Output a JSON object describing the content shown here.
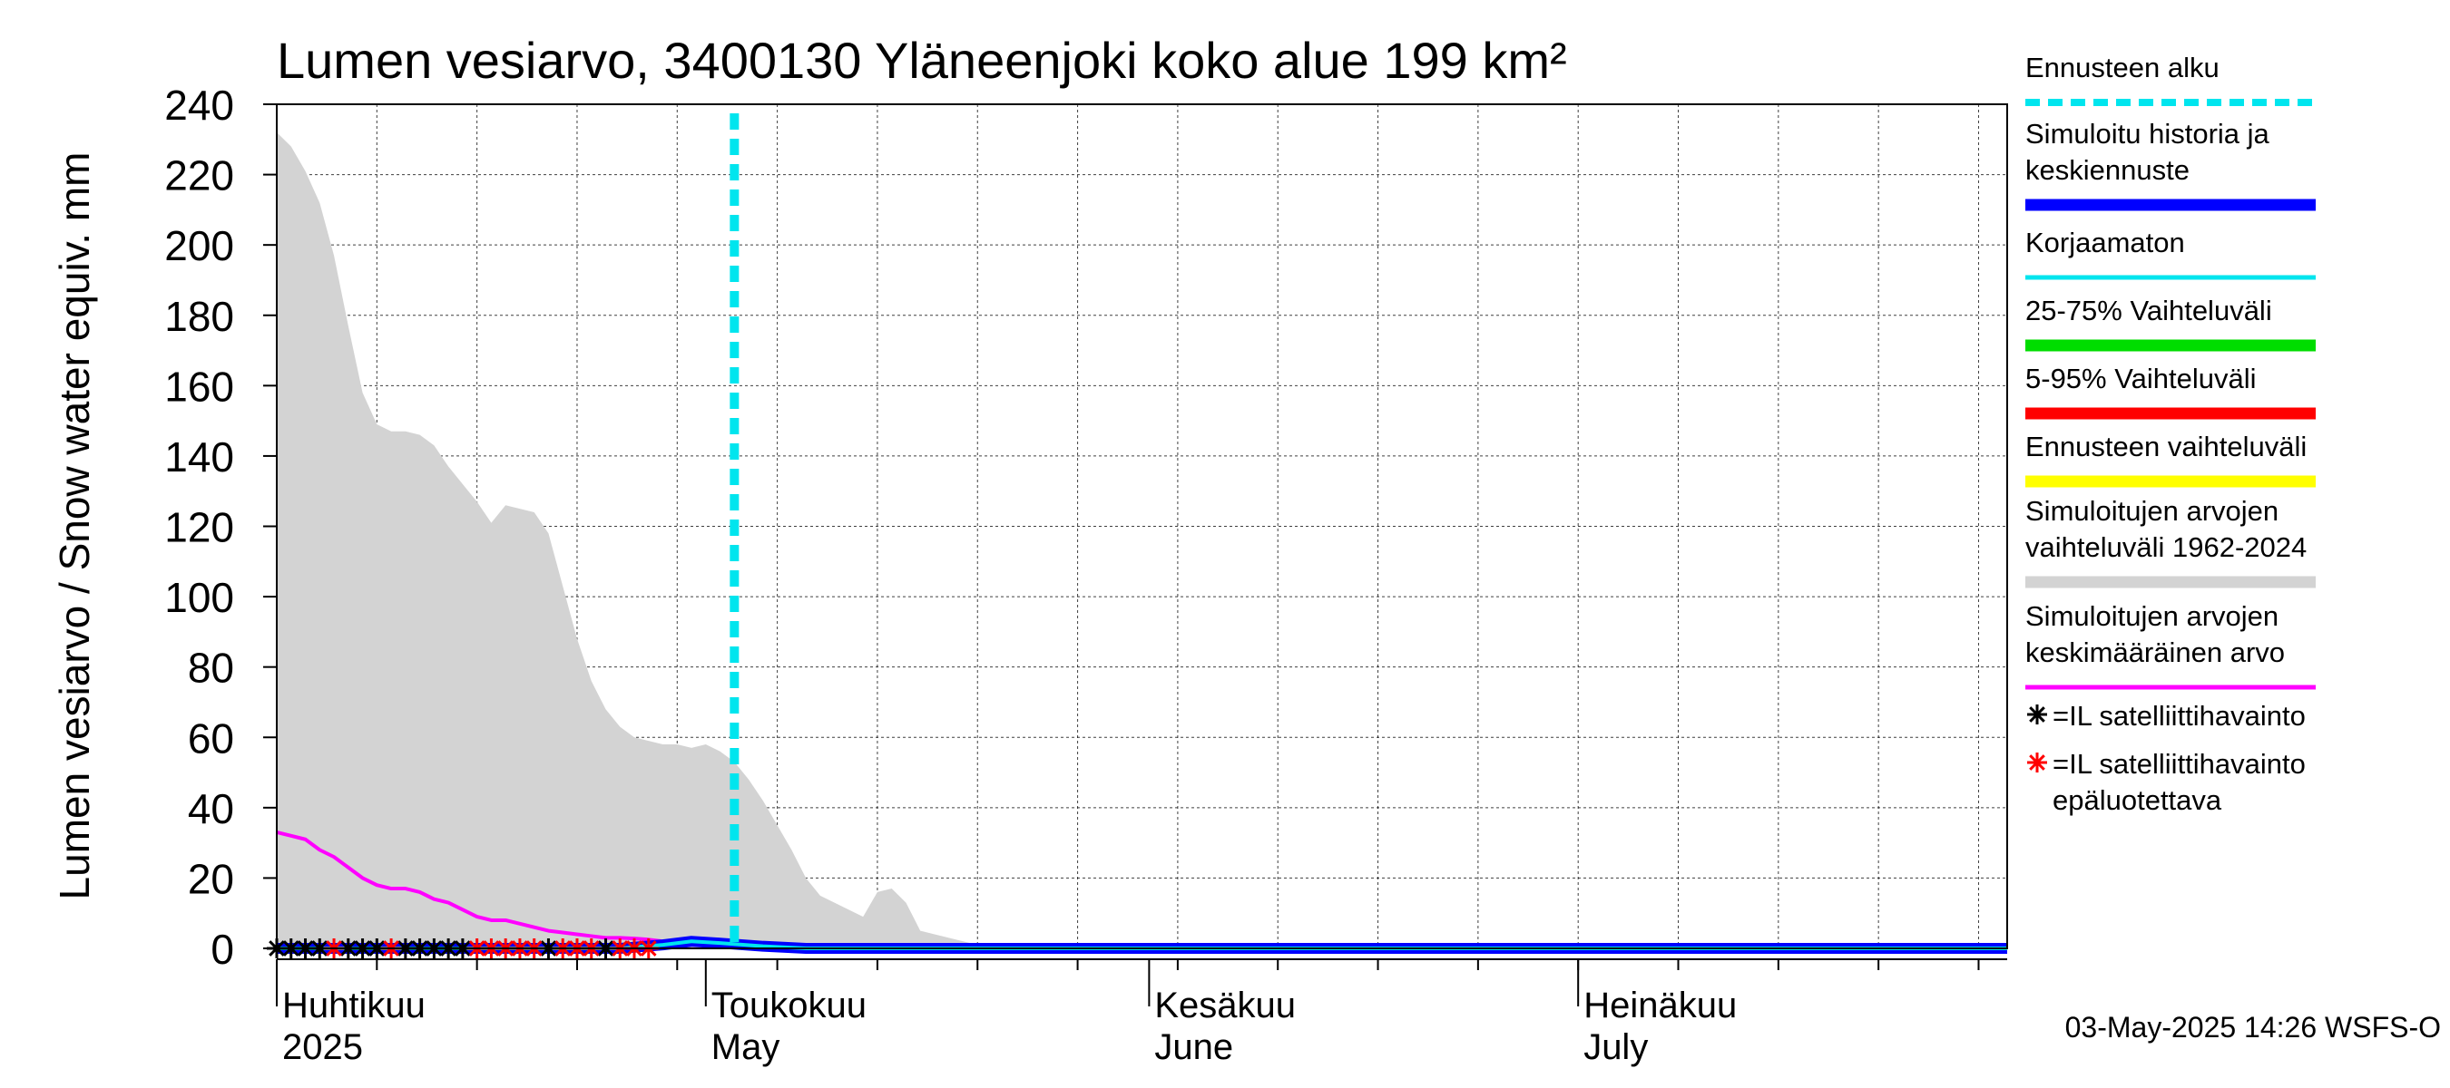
{
  "chart_data": {
    "type": "area",
    "title": "Lumen vesiarvo, 3400130 Yläneenjoki koko alue 199 km²",
    "ylabel": "Lumen vesiarvo / Snow water equiv.    mm",
    "ylim": [
      0,
      240
    ],
    "y_ticks": [
      0,
      20,
      40,
      60,
      80,
      100,
      120,
      140,
      160,
      180,
      200,
      220,
      240
    ],
    "x_range": [
      "2025-04-01",
      "2025-07-31"
    ],
    "x_month_labels": [
      {
        "date": "2025-04-01",
        "line1": "Huhtikuu",
        "line2": "2025"
      },
      {
        "date": "2025-05-01",
        "line1": "Toukokuu",
        "line2": "May"
      },
      {
        "date": "2025-06-01",
        "line1": "Kesäkuu",
        "line2": "June"
      },
      {
        "date": "2025-07-01",
        "line1": "Heinäkuu",
        "line2": "July"
      }
    ],
    "grid": true,
    "legend_position": "right",
    "forecast_start": "2025-05-03",
    "series": [
      {
        "name": "Simuloitujen arvojen vaihteluväli 1962-2024",
        "color": "#d3d3d3",
        "kind": "band",
        "x": [
          "2025-04-01",
          "2025-04-02",
          "2025-04-03",
          "2025-04-04",
          "2025-04-05",
          "2025-04-06",
          "2025-04-07",
          "2025-04-08",
          "2025-04-09",
          "2025-04-10",
          "2025-04-11",
          "2025-04-12",
          "2025-04-13",
          "2025-04-14",
          "2025-04-15",
          "2025-04-16",
          "2025-04-17",
          "2025-04-18",
          "2025-04-19",
          "2025-04-20",
          "2025-04-21",
          "2025-04-22",
          "2025-04-23",
          "2025-04-24",
          "2025-04-25",
          "2025-04-26",
          "2025-04-27",
          "2025-04-28",
          "2025-04-29",
          "2025-04-30",
          "2025-05-01",
          "2025-05-02",
          "2025-05-03",
          "2025-05-04",
          "2025-05-05",
          "2025-05-06",
          "2025-05-07",
          "2025-05-08",
          "2025-05-09",
          "2025-05-10",
          "2025-05-11",
          "2025-05-12",
          "2025-05-13",
          "2025-05-14",
          "2025-05-15",
          "2025-05-16",
          "2025-05-17",
          "2025-05-18",
          "2025-05-19",
          "2025-05-20",
          "2025-05-22",
          "2025-05-25",
          "2025-07-31"
        ],
        "y_max": [
          232,
          228,
          221,
          212,
          197,
          177,
          158,
          149,
          147,
          147,
          146,
          143,
          137,
          132,
          127,
          121,
          126,
          125,
          124,
          118,
          103,
          88,
          76,
          68,
          63,
          60,
          59,
          58,
          58,
          57,
          58,
          56,
          53,
          48,
          42,
          35,
          28,
          20,
          15,
          13,
          11,
          9,
          16,
          17,
          13,
          5,
          4,
          3,
          2,
          1,
          0,
          0,
          0
        ],
        "y_min": [
          0,
          0,
          0,
          0,
          0,
          0,
          0,
          0,
          0,
          0,
          0,
          0,
          0,
          0,
          0,
          0,
          0,
          0,
          0,
          0,
          0,
          0,
          0,
          0,
          0,
          0,
          0,
          0,
          0,
          0,
          0,
          0,
          0,
          0,
          0,
          0,
          0,
          0,
          0,
          0,
          0,
          0,
          0,
          0,
          0,
          0,
          0,
          0,
          0,
          0,
          0,
          0,
          0
        ]
      },
      {
        "name": "Simuloitujen arvojen keskimääräinen arvo",
        "color": "#ff00ff",
        "x": [
          "2025-04-01",
          "2025-04-02",
          "2025-04-03",
          "2025-04-04",
          "2025-04-05",
          "2025-04-06",
          "2025-04-07",
          "2025-04-08",
          "2025-04-09",
          "2025-04-10",
          "2025-04-11",
          "2025-04-12",
          "2025-04-13",
          "2025-04-14",
          "2025-04-15",
          "2025-04-16",
          "2025-04-17",
          "2025-04-18",
          "2025-04-19",
          "2025-04-20",
          "2025-04-21",
          "2025-04-22",
          "2025-04-23",
          "2025-04-24",
          "2025-04-25",
          "2025-04-26",
          "2025-04-27",
          "2025-04-28",
          "2025-04-29",
          "2025-04-30",
          "2025-05-01",
          "2025-05-02",
          "2025-05-03",
          "2025-05-04",
          "2025-05-05",
          "2025-05-06",
          "2025-05-07",
          "2025-07-31"
        ],
        "y": [
          33,
          32,
          31,
          28,
          26,
          23,
          20,
          18,
          17,
          17,
          16,
          14,
          13,
          11,
          9,
          8,
          8,
          7,
          6,
          5,
          4.5,
          4,
          3.5,
          3,
          3,
          2.8,
          2.5,
          2,
          1.8,
          1.5,
          1.2,
          1,
          0.8,
          0.6,
          0.4,
          0.2,
          0.1,
          0
        ]
      },
      {
        "name": "Simuloitu historia ja keskiennuste",
        "color": "#0000ff",
        "x": [
          "2025-04-01",
          "2025-04-25",
          "2025-04-28",
          "2025-04-30",
          "2025-05-02",
          "2025-05-05",
          "2025-05-08",
          "2025-07-31"
        ],
        "y": [
          0,
          0,
          1,
          2,
          1.5,
          0.6,
          0,
          0
        ]
      },
      {
        "name": "Korjaamaton",
        "color": "#00e5ee",
        "x": [
          "2025-04-01",
          "2025-04-25",
          "2025-04-28",
          "2025-04-30",
          "2025-05-02",
          "2025-05-05",
          "2025-05-08",
          "2025-07-31"
        ],
        "y": [
          0,
          0,
          1,
          2,
          1.5,
          0.6,
          0,
          0
        ]
      },
      {
        "name": "25-75% Vaihteluväli",
        "color": "#00dd00",
        "x": [],
        "y": []
      },
      {
        "name": "5-95% Vaihteluväli",
        "color": "#ff0000",
        "x": [],
        "y": []
      },
      {
        "name": "Ennusteen vaihteluväli",
        "color": "#ffff00",
        "x": [],
        "y": []
      },
      {
        "name": "=IL satelliittihavainto",
        "color": "#000000",
        "kind": "marker",
        "x": [
          "2025-04-01",
          "2025-04-02",
          "2025-04-03",
          "2025-04-04",
          "2025-04-06",
          "2025-04-07",
          "2025-04-08",
          "2025-04-10",
          "2025-04-11",
          "2025-04-12",
          "2025-04-13",
          "2025-04-14",
          "2025-04-20",
          "2025-04-24"
        ],
        "y": [
          0,
          0,
          0,
          0,
          0,
          0,
          0,
          0,
          0,
          0,
          0,
          0,
          0,
          0
        ]
      },
      {
        "name": "=IL satelliittihavainto epäluotettava",
        "color": "#ff0000",
        "kind": "marker",
        "x": [
          "2025-04-05",
          "2025-04-09",
          "2025-04-15",
          "2025-04-16",
          "2025-04-17",
          "2025-04-18",
          "2025-04-19",
          "2025-04-21",
          "2025-04-22",
          "2025-04-23",
          "2025-04-25",
          "2025-04-26",
          "2025-04-27"
        ],
        "y": [
          0,
          0,
          0,
          0,
          0,
          0,
          0,
          0,
          0,
          0,
          0,
          0,
          0
        ]
      }
    ]
  },
  "legend": [
    {
      "lines": [
        "Ennusteen alku"
      ],
      "color": "#00e5ee",
      "style": "dashed"
    },
    {
      "lines": [
        "Simuloitu historia ja",
        "keskiennuste"
      ],
      "color": "#0000ff",
      "style": "thick"
    },
    {
      "lines": [
        "Korjaamaton"
      ],
      "color": "#00e5ee",
      "style": "thin"
    },
    {
      "lines": [
        "25-75% Vaihteluväli"
      ],
      "color": "#00dd00",
      "style": "thick"
    },
    {
      "lines": [
        "5-95% Vaihteluväli"
      ],
      "color": "#ff0000",
      "style": "thick"
    },
    {
      "lines": [
        "Ennusteen vaihteluväli"
      ],
      "color": "#ffff00",
      "style": "thick"
    },
    {
      "lines": [
        "Simuloitujen arvojen",
        "vaihteluväli 1962-2024"
      ],
      "color": "#d3d3d3",
      "style": "thick"
    },
    {
      "lines": [
        "Simuloitujen arvojen",
        "keskimääräinen arvo"
      ],
      "color": "#ff00ff",
      "style": "thin"
    },
    {
      "lines": [
        "=IL satelliittihavainto"
      ],
      "color": "#000000",
      "style": "marker"
    },
    {
      "lines": [
        "=IL satelliittihavainto",
        "epäluotettava"
      ],
      "color": "#ff0000",
      "style": "marker"
    }
  ],
  "footer": "03-May-2025 14:26 WSFS-O"
}
